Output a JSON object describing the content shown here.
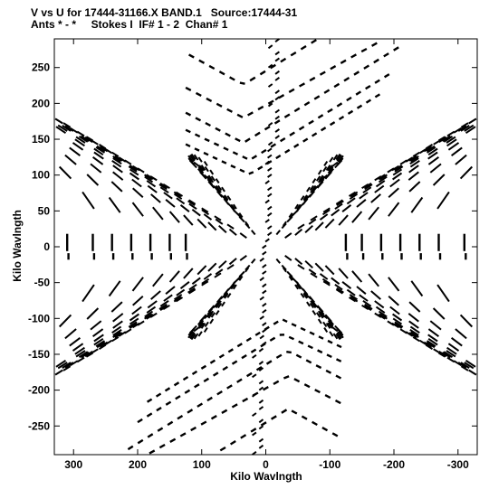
{
  "header": {
    "title_line1": "V vs U for 17444-31166.X BAND.1   Source:17444-31",
    "title_line2": "Ants * - *     Stokes I  IF# 1 - 2  Chan# 1"
  },
  "chart_data": {
    "type": "scatter",
    "title": "V vs U for 17444-31166.X BAND.1   Source:17444-31",
    "subtitle": "Ants * - *     Stokes I  IF# 1 - 2  Chan# 1",
    "xlabel": "Kilo Wavlngth",
    "ylabel": "Kilo Wavlngth",
    "xlim": [
      330,
      -330
    ],
    "ylim": [
      -290,
      290
    ],
    "x_reversed": true,
    "xticks": [
      300,
      200,
      100,
      0,
      -100,
      -200,
      -300
    ],
    "xtick_labels": [
      "300",
      "200",
      "100",
      "0",
      "-100",
      "-200",
      "-300"
    ],
    "yticks": [
      250,
      200,
      150,
      100,
      50,
      0,
      -50,
      -100,
      -150,
      -200,
      -250
    ],
    "ytick_labels": [
      "250",
      "200",
      "150",
      "100",
      "50",
      "0",
      "-50",
      "-100",
      "-150",
      "-200",
      "-250"
    ],
    "grid": false,
    "legend": "none",
    "marker_color": "#000000",
    "families": {
      "upper_v_tracks": [
        {
          "base": 268,
          "slope": -0.28,
          "apex_x": 35,
          "right_slope": -0.55,
          "x_start": 120,
          "x_end": -230
        },
        {
          "base": 222,
          "slope": -0.32,
          "apex_x": 35,
          "right_slope": -0.5,
          "x_start": 125,
          "x_end": -230
        },
        {
          "base": 187,
          "slope": -0.36,
          "apex_x": 35,
          "right_slope": -0.55,
          "x_start": 125,
          "x_end": -215
        },
        {
          "base": 163,
          "slope": -0.4,
          "apex_x": 25,
          "right_slope": -0.55,
          "x_start": 125,
          "x_end": -200
        },
        {
          "base": 143,
          "slope": -0.44,
          "apex_x": 25,
          "right_slope": -0.55,
          "x_start": 125,
          "x_end": -185
        }
      ],
      "lower_v_tracks": [
        {
          "base": -268,
          "slope": 0.28,
          "apex_x": -35,
          "left_slope": 0.55,
          "x_start": 230,
          "x_end": -120
        },
        {
          "base": -222,
          "slope": 0.32,
          "apex_x": -35,
          "left_slope": 0.5,
          "x_start": 230,
          "x_end": -125
        },
        {
          "base": -187,
          "slope": 0.36,
          "apex_x": -35,
          "left_slope": 0.55,
          "x_start": 215,
          "x_end": -125
        },
        {
          "base": -163,
          "slope": 0.4,
          "apex_x": -25,
          "left_slope": 0.55,
          "x_start": 200,
          "x_end": -125
        },
        {
          "base": -143,
          "slope": 0.44,
          "apex_x": -25,
          "left_slope": 0.55,
          "x_start": 185,
          "x_end": -125
        }
      ],
      "hyperbola_tracks": {
        "scales": [
          20,
          35,
          50,
          65,
          80,
          100,
          120,
          145,
          175,
          210,
          250,
          300
        ],
        "description": "dashed arcs v = ±sqrt(u^2 - s^2)*0.5 and u = ±sqrt(v^2 - s^2)*... forming a star around the origin"
      },
      "horizontal_stubs": {
        "u_values": [
          310,
          270,
          240,
          210,
          180,
          150,
          125,
          -125,
          -150,
          -180,
          -210,
          -240,
          -270,
          -310
        ],
        "v_extent": 20
      },
      "central_column": {
        "u_center": 0,
        "v_range": [
          -290,
          290
        ]
      }
    }
  }
}
